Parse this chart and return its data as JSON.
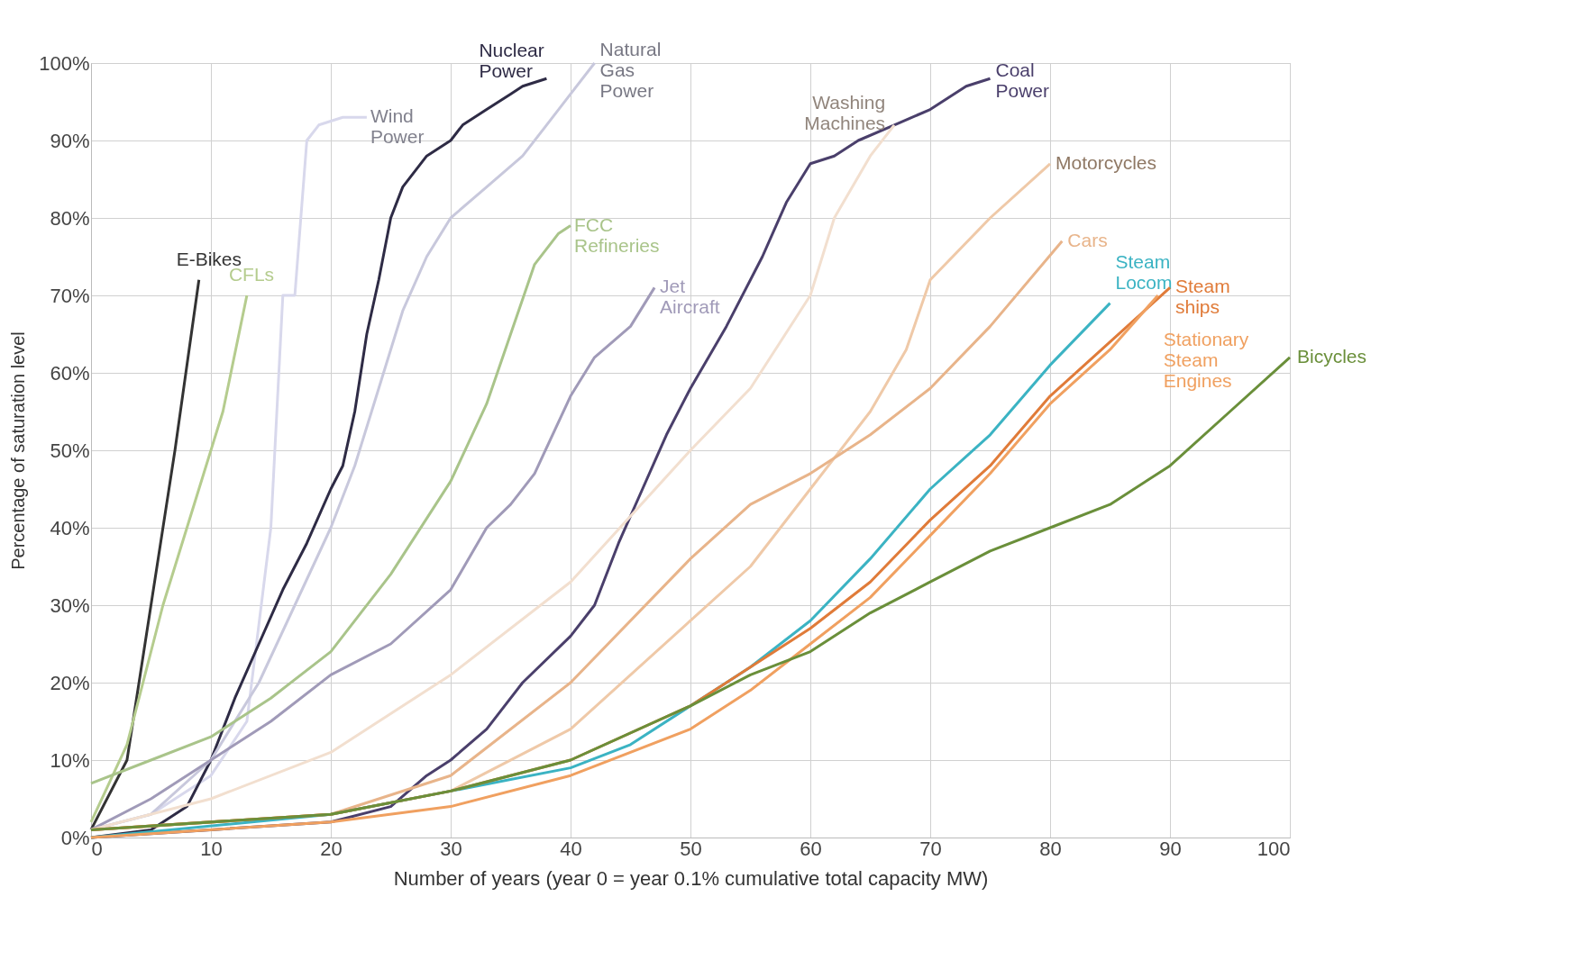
{
  "chart_data": {
    "type": "line",
    "xlabel": "Number of years (year 0 = year 0.1% cumulative total capacity MW)",
    "ylabel": "Percentage of saturation level",
    "xlim": [
      0,
      100
    ],
    "xticks": [
      0,
      10,
      20,
      30,
      40,
      50,
      60,
      70,
      80,
      90,
      100
    ],
    "ylim": [
      0,
      100
    ],
    "yticks": [
      {
        "value": 0,
        "label": "0%"
      },
      {
        "value": 10,
        "label": "10%"
      },
      {
        "value": 20,
        "label": "20%"
      },
      {
        "value": 30,
        "label": "30%"
      },
      {
        "value": 40,
        "label": "40%"
      },
      {
        "value": 50,
        "label": "50%"
      },
      {
        "value": 60,
        "label": "60%"
      },
      {
        "value": 70,
        "label": "70%"
      },
      {
        "value": 80,
        "label": "80%"
      },
      {
        "value": 90,
        "label": "90%"
      },
      {
        "value": 100,
        "label": "100%"
      }
    ],
    "grid": true,
    "legend": false,
    "marker": "none",
    "line_style": "solid",
    "series": [
      {
        "name": "E-Bikes",
        "color": "#333333",
        "x": [
          0,
          3,
          5,
          7,
          9
        ],
        "values": [
          1,
          10,
          30,
          50,
          72
        ]
      },
      {
        "name": "CFLs",
        "color": "#b5cc8e",
        "x": [
          0,
          3,
          6,
          9,
          11,
          13
        ],
        "values": [
          2,
          12,
          30,
          45,
          55,
          70
        ]
      },
      {
        "name": "Wind Power",
        "color": "#d8d8ec",
        "x": [
          0,
          5,
          10,
          13,
          15,
          16,
          17,
          18,
          19,
          21,
          23
        ],
        "values": [
          1,
          3,
          8,
          15,
          40,
          70,
          70,
          90,
          92,
          93,
          93
        ]
      },
      {
        "name": "Nuclear Power",
        "color": "#2e2b45",
        "x": [
          0,
          5,
          8,
          10,
          12,
          14,
          16,
          18,
          20,
          21,
          22,
          23,
          24,
          25,
          26,
          28,
          30,
          31,
          33,
          35,
          36,
          38
        ],
        "values": [
          0,
          1,
          4,
          10,
          18,
          25,
          32,
          38,
          45,
          48,
          55,
          65,
          72,
          80,
          84,
          88,
          90,
          92,
          94,
          96,
          97,
          98
        ]
      },
      {
        "name": "Natural Gas Power",
        "color": "#c8c8dc",
        "x": [
          0,
          5,
          10,
          14,
          17,
          20,
          22,
          24,
          26,
          28,
          30,
          33,
          36,
          38,
          40,
          42
        ],
        "values": [
          1,
          3,
          10,
          20,
          30,
          40,
          48,
          58,
          68,
          75,
          80,
          84,
          88,
          92,
          96,
          100
        ]
      },
      {
        "name": "FCC Refineries",
        "color": "#a9c48a",
        "x": [
          0,
          5,
          10,
          15,
          20,
          25,
          30,
          33,
          35,
          37,
          39,
          40
        ],
        "values": [
          7,
          10,
          13,
          18,
          24,
          34,
          46,
          56,
          65,
          74,
          78,
          79
        ]
      },
      {
        "name": "Jet Aircraft",
        "color": "#a09ab8",
        "x": [
          0,
          5,
          10,
          15,
          20,
          25,
          30,
          33,
          35,
          37,
          40,
          42,
          45,
          47
        ],
        "values": [
          1,
          5,
          10,
          15,
          21,
          25,
          32,
          40,
          43,
          47,
          57,
          62,
          66,
          71
        ]
      },
      {
        "name": "Coal Power",
        "color": "#4a3f6b",
        "x": [
          0,
          10,
          20,
          25,
          28,
          30,
          33,
          36,
          40,
          42,
          44,
          46,
          48,
          50,
          53,
          56,
          58,
          60,
          62,
          64,
          67,
          70,
          73,
          75
        ],
        "values": [
          0,
          1,
          2,
          4,
          8,
          10,
          14,
          20,
          26,
          30,
          38,
          45,
          52,
          58,
          66,
          75,
          82,
          87,
          88,
          90,
          92,
          94,
          97,
          98
        ]
      },
      {
        "name": "Washing Machines",
        "color": "#f2dfcf",
        "x": [
          0,
          10,
          20,
          30,
          40,
          50,
          55,
          60,
          62,
          65,
          67
        ],
        "values": [
          1,
          5,
          11,
          21,
          33,
          50,
          58,
          70,
          80,
          88,
          92
        ]
      },
      {
        "name": "Motorcycles",
        "color": "#efc9a8",
        "x": [
          0,
          20,
          30,
          40,
          50,
          55,
          60,
          65,
          68,
          70,
          75,
          80
        ],
        "values": [
          1,
          3,
          6,
          14,
          28,
          35,
          45,
          55,
          63,
          72,
          80,
          87
        ]
      },
      {
        "name": "Cars",
        "color": "#e8b48a",
        "x": [
          0,
          20,
          30,
          40,
          50,
          55,
          60,
          65,
          70,
          75,
          81
        ],
        "values": [
          1,
          3,
          8,
          20,
          36,
          43,
          47,
          52,
          58,
          66,
          77
        ]
      },
      {
        "name": "Steam Locom",
        "color": "#3bb3c3",
        "x": [
          0,
          20,
          30,
          40,
          45,
          50,
          55,
          60,
          65,
          70,
          75,
          80,
          85
        ],
        "values": [
          0,
          3,
          6,
          9,
          12,
          17,
          22,
          28,
          36,
          45,
          52,
          61,
          69
        ]
      },
      {
        "name": "Steam ships",
        "color": "#e07b39",
        "x": [
          0,
          20,
          30,
          40,
          50,
          55,
          60,
          65,
          70,
          75,
          80,
          85,
          90
        ],
        "values": [
          1,
          3,
          6,
          10,
          17,
          22,
          27,
          33,
          41,
          48,
          57,
          64,
          71
        ]
      },
      {
        "name": "Stationary Steam Engines",
        "color": "#f0a060",
        "x": [
          0,
          20,
          30,
          40,
          50,
          55,
          60,
          65,
          70,
          75,
          80,
          85,
          89
        ],
        "values": [
          0,
          2,
          4,
          8,
          14,
          19,
          25,
          31,
          39,
          47,
          56,
          63,
          70
        ]
      },
      {
        "name": "Bicycles",
        "color": "#6a8f3a",
        "x": [
          0,
          20,
          30,
          40,
          50,
          55,
          60,
          65,
          70,
          75,
          80,
          85,
          90,
          95,
          100
        ],
        "values": [
          1,
          3,
          6,
          10,
          17,
          21,
          24,
          29,
          33,
          37,
          40,
          43,
          48,
          55,
          62
        ]
      }
    ]
  }
}
